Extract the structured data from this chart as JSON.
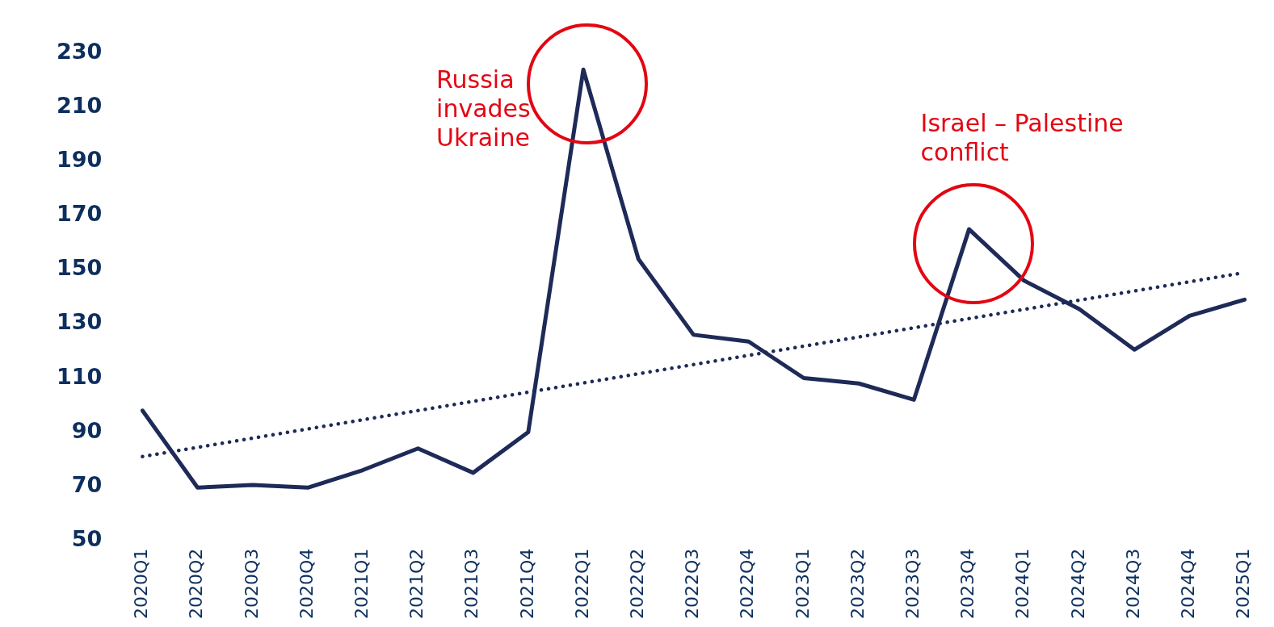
{
  "chart_data": {
    "type": "line",
    "categories": [
      "2020Q1",
      "2020Q2",
      "2020Q3",
      "2020Q4",
      "2021Q1",
      "2021Q2",
      "2021Q3",
      "2021Q4",
      "2022Q1",
      "2022Q2",
      "2022Q3",
      "2022Q4",
      "2023Q1",
      "2023Q2",
      "2023Q3",
      "2023Q4",
      "2024Q1",
      "2024Q2",
      "2024Q3",
      "2024Q4",
      "2025Q1"
    ],
    "series": [
      {
        "color": "#1e2a57",
        "line_style": "solid",
        "values": [
          98,
          69.5,
          70.5,
          69.5,
          76,
          84,
          75,
          90,
          224,
          154,
          126,
          123.5,
          110,
          108,
          102,
          165,
          146,
          135.5,
          120.5,
          133,
          139
        ]
      },
      {
        "type": "line",
        "color": "#1e2a57",
        "line_style": "dotted",
        "x": [
          "2020Q1",
          "2025Q1"
        ],
        "values": [
          81,
          149
        ]
      }
    ],
    "ylim": [
      50,
      230
    ],
    "yticks": [
      50,
      70,
      90,
      110,
      130,
      150,
      170,
      190,
      210,
      230
    ],
    "grid": false,
    "legend": false,
    "marker": "none",
    "annotations": [
      {
        "text": "Russia invades Ukraine",
        "x": "2022Q1",
        "y": 224
      },
      {
        "text": "Israel – Palestine conflict",
        "x": "2023Q4",
        "y": 165
      }
    ]
  }
}
